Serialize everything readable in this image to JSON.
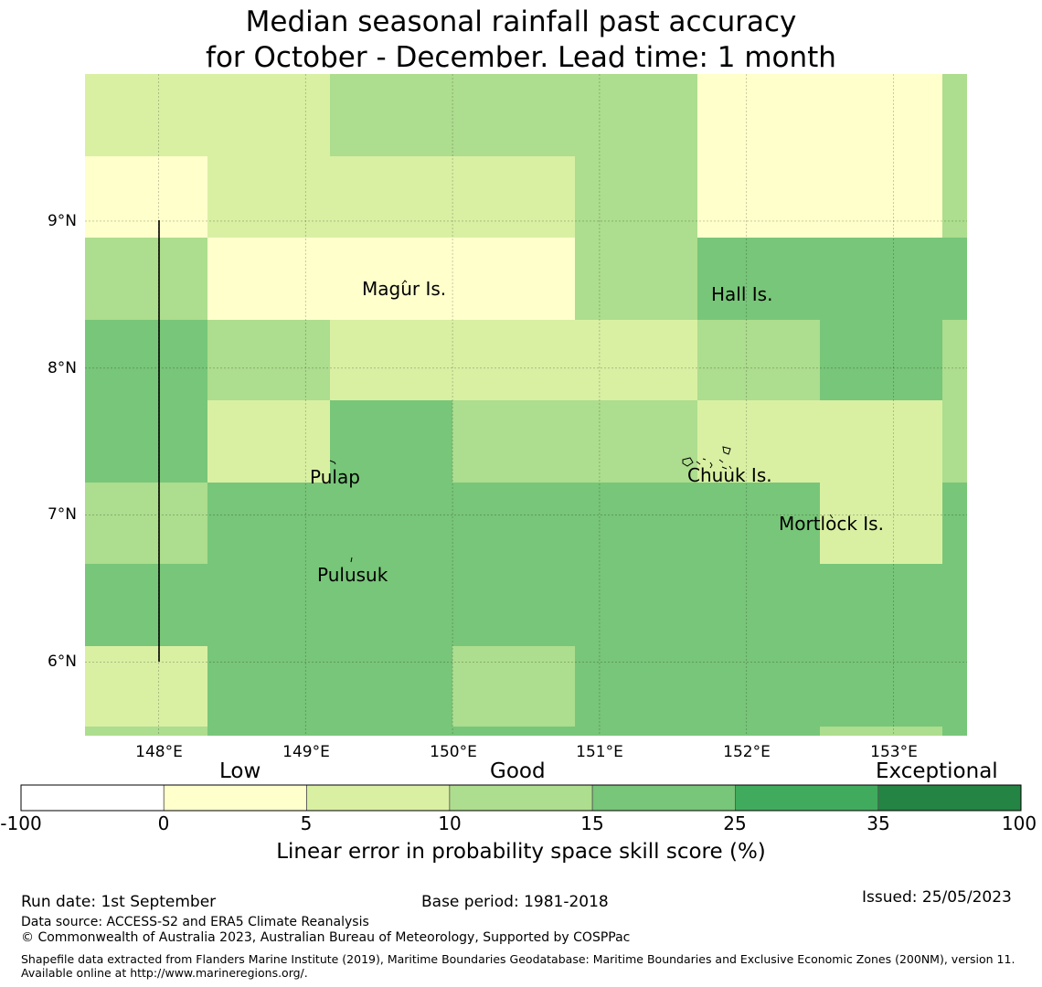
{
  "title": {
    "line1": "Median seasonal rainfall past accuracy",
    "line2": "for October - December. Lead time: 1 month"
  },
  "map": {
    "lon_range": [
      147.5,
      153.5
    ],
    "lat_range": [
      5.5,
      10.0
    ],
    "grid_cell_deg": 0.833,
    "lon_labels": [
      "148°E",
      "149°E",
      "150°E",
      "151°E",
      "152°E",
      "153°E"
    ],
    "lat_labels": [
      "9°N",
      "8°N",
      "7°N",
      "6°N"
    ],
    "place_labels": [
      "Magur Is.",
      "Hall Is.",
      "Pulap",
      "Chuuk Is.",
      "Mortlock Is.",
      "Pulusuk"
    ],
    "grid_skill_classes": [
      [
        2,
        2,
        3,
        3,
        3,
        1,
        1,
        3
      ],
      [
        1,
        2,
        2,
        2,
        3,
        1,
        1,
        3
      ],
      [
        3,
        1,
        1,
        1,
        3,
        4,
        4,
        4
      ],
      [
        4,
        3,
        2,
        2,
        2,
        3,
        4,
        3
      ],
      [
        4,
        2,
        4,
        3,
        3,
        2,
        2,
        3
      ],
      [
        3,
        4,
        4,
        4,
        4,
        4,
        2,
        4
      ],
      [
        4,
        4,
        4,
        4,
        4,
        4,
        4,
        4
      ],
      [
        2,
        4,
        4,
        3,
        4,
        4,
        4,
        4
      ],
      [
        3,
        4,
        4,
        4,
        4,
        4,
        3,
        4
      ]
    ]
  },
  "colorbar": {
    "categories": [
      {
        "label": "Low",
        "color": "#ffffcc"
      },
      {
        "label": "Good",
        "color": "#addd8e"
      },
      {
        "label": "Exceptional",
        "color": "#238443"
      }
    ],
    "bins": [
      {
        "from": -100,
        "to": 0,
        "color": "#ffffff"
      },
      {
        "from": 0,
        "to": 5,
        "color": "#ffffcc"
      },
      {
        "from": 5,
        "to": 10,
        "color": "#d9f0a3"
      },
      {
        "from": 10,
        "to": 15,
        "color": "#addd8e"
      },
      {
        "from": 15,
        "to": 25,
        "color": "#78c679"
      },
      {
        "from": 25,
        "to": 35,
        "color": "#41ab5d"
      },
      {
        "from": 35,
        "to": 100,
        "color": "#238443"
      }
    ],
    "ticks": [
      "-100",
      "0",
      "5",
      "10",
      "15",
      "25",
      "35",
      "100"
    ],
    "xlabel": "Linear error in probability space skill score (%)"
  },
  "footer": {
    "run_date": "Run date: 1st September",
    "base_period": "Base period: 1981-2018",
    "issued": "Issued: 25/05/2023",
    "data_source": "Data source: ACCESS-S2 and ERA5 Climate Reanalysis",
    "copyright": "© Commonwealth of Australia 2023, Australian Bureau of Meteorology, Supported by COSPPac",
    "shapefile_note": "Shapefile data extracted from Flanders Marine Institute (2019), Maritime Boundaries Geodatabase: Maritime Boundaries and Exclusive Economic Zones (200NM), version 11. Available online at http://www.marineregions.org/."
  }
}
